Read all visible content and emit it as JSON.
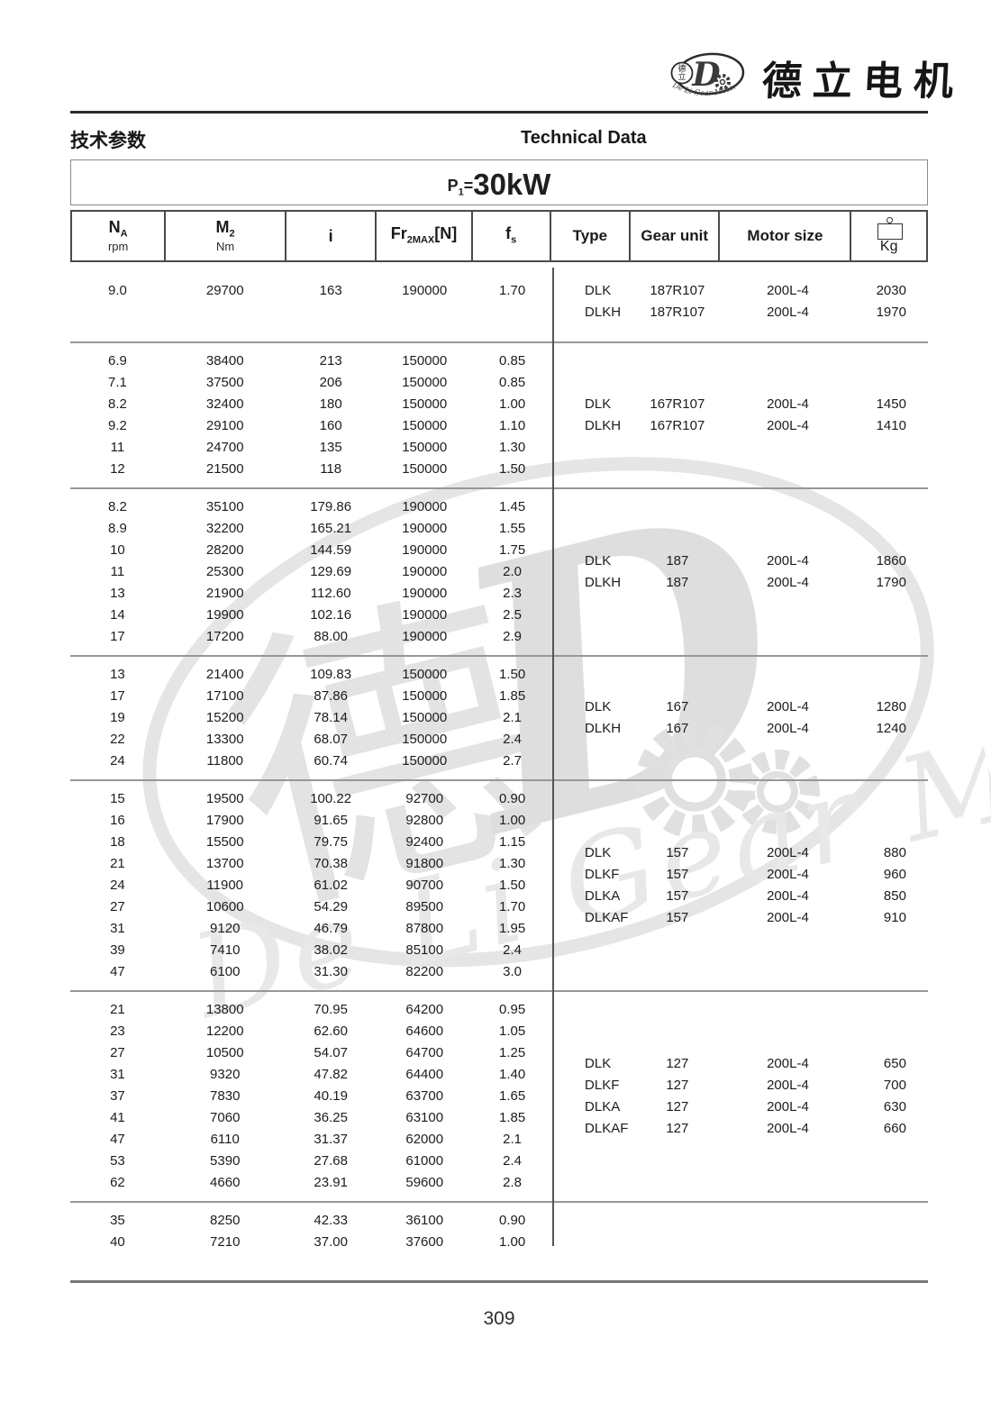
{
  "brand": {
    "name_cn": "德立电机",
    "logo_letter": "D",
    "logo_cn_top": "德",
    "logo_cn_bottom": "立",
    "ring_text": "De Li Gear Motor"
  },
  "titles": {
    "section_cn": "技术参数",
    "section_en": "Technical Data"
  },
  "power": {
    "prefix": "P",
    "sub": "1",
    "eq": "=",
    "value": "30kW"
  },
  "watermark": {
    "script_text": "De Li Gear Motor",
    "char_cn": "德",
    "letter": "D"
  },
  "page_number": "309",
  "table": {
    "col_keys": [
      "na-rpm",
      "m2-nm",
      "ratio-i",
      "fr2max",
      "fs"
    ],
    "type_keys": [
      "type",
      "gear-unit",
      "motor-size",
      "weight-kg"
    ],
    "columns": [
      {
        "main": "N",
        "sub": "A",
        "unit": "rpm"
      },
      {
        "main": "M",
        "sub": "2",
        "unit": "Nm"
      },
      {
        "main": "i"
      },
      {
        "main": "Fr",
        "sub": "2MAX",
        "after": "[N]"
      },
      {
        "main": "f",
        "sub": "s"
      },
      {
        "label": "Type"
      },
      {
        "label": "Gear unit"
      },
      {
        "label": "Motor size"
      },
      {
        "label": "Kg",
        "icon": "weight-icon"
      }
    ],
    "groups": [
      {
        "rows": [
          [
            "9.0",
            "29700",
            "163",
            "190000",
            "1.70"
          ]
        ],
        "types": [
          [
            "DLK",
            "187R107",
            "200L-4",
            "2030"
          ],
          [
            "DLKH",
            "187R107",
            "200L-4",
            "1970"
          ]
        ]
      },
      {
        "rows": [
          [
            "6.9",
            "38400",
            "213",
            "150000",
            "0.85"
          ],
          [
            "7.1",
            "37500",
            "206",
            "150000",
            "0.85"
          ],
          [
            "8.2",
            "32400",
            "180",
            "150000",
            "1.00"
          ],
          [
            "9.2",
            "29100",
            "160",
            "150000",
            "1.10"
          ],
          [
            "11",
            "24700",
            "135",
            "150000",
            "1.30"
          ],
          [
            "12",
            "21500",
            "118",
            "150000",
            "1.50"
          ]
        ],
        "types": [
          [
            "DLK",
            "167R107",
            "200L-4",
            "1450"
          ],
          [
            "DLKH",
            "167R107",
            "200L-4",
            "1410"
          ]
        ]
      },
      {
        "rows": [
          [
            "8.2",
            "35100",
            "179.86",
            "190000",
            "1.45"
          ],
          [
            "8.9",
            "32200",
            "165.21",
            "190000",
            "1.55"
          ],
          [
            "10",
            "28200",
            "144.59",
            "190000",
            "1.75"
          ],
          [
            "11",
            "25300",
            "129.69",
            "190000",
            "2.0"
          ],
          [
            "13",
            "21900",
            "112.60",
            "190000",
            "2.3"
          ],
          [
            "14",
            "19900",
            "102.16",
            "190000",
            "2.5"
          ],
          [
            "17",
            "17200",
            "88.00",
            "190000",
            "2.9"
          ]
        ],
        "types": [
          [
            "DLK",
            "187",
            "200L-4",
            "1860"
          ],
          [
            "DLKH",
            "187",
            "200L-4",
            "1790"
          ]
        ]
      },
      {
        "rows": [
          [
            "13",
            "21400",
            "109.83",
            "150000",
            "1.50"
          ],
          [
            "17",
            "17100",
            "87.86",
            "150000",
            "1.85"
          ],
          [
            "19",
            "15200",
            "78.14",
            "150000",
            "2.1"
          ],
          [
            "22",
            "13300",
            "68.07",
            "150000",
            "2.4"
          ],
          [
            "24",
            "11800",
            "60.74",
            "150000",
            "2.7"
          ]
        ],
        "types": [
          [
            "DLK",
            "167",
            "200L-4",
            "1280"
          ],
          [
            "DLKH",
            "167",
            "200L-4",
            "1240"
          ]
        ]
      },
      {
        "rows": [
          [
            "15",
            "19500",
            "100.22",
            "92700",
            "0.90"
          ],
          [
            "16",
            "17900",
            "91.65",
            "92800",
            "1.00"
          ],
          [
            "18",
            "15500",
            "79.75",
            "92400",
            "1.15"
          ],
          [
            "21",
            "13700",
            "70.38",
            "91800",
            "1.30"
          ],
          [
            "24",
            "11900",
            "61.02",
            "90700",
            "1.50"
          ],
          [
            "27",
            "10600",
            "54.29",
            "89500",
            "1.70"
          ],
          [
            "31",
            "9120",
            "46.79",
            "87800",
            "1.95"
          ],
          [
            "39",
            "7410",
            "38.02",
            "85100",
            "2.4"
          ],
          [
            "47",
            "6100",
            "31.30",
            "82200",
            "3.0"
          ]
        ],
        "types": [
          [
            "DLK",
            "157",
            "200L-4",
            "880"
          ],
          [
            "DLKF",
            "157",
            "200L-4",
            "960"
          ],
          [
            "DLKA",
            "157",
            "200L-4",
            "850"
          ],
          [
            "DLKAF",
            "157",
            "200L-4",
            "910"
          ]
        ]
      },
      {
        "rows": [
          [
            "21",
            "13800",
            "70.95",
            "64200",
            "0.95"
          ],
          [
            "23",
            "12200",
            "62.60",
            "64600",
            "1.05"
          ],
          [
            "27",
            "10500",
            "54.07",
            "64700",
            "1.25"
          ],
          [
            "31",
            "9320",
            "47.82",
            "64400",
            "1.40"
          ],
          [
            "37",
            "7830",
            "40.19",
            "63700",
            "1.65"
          ],
          [
            "41",
            "7060",
            "36.25",
            "63100",
            "1.85"
          ],
          [
            "47",
            "6110",
            "31.37",
            "62000",
            "2.1"
          ],
          [
            "53",
            "5390",
            "27.68",
            "61000",
            "2.4"
          ],
          [
            "62",
            "4660",
            "23.91",
            "59600",
            "2.8"
          ]
        ],
        "types": [
          [
            "DLK",
            "127",
            "200L-4",
            "650"
          ],
          [
            "DLKF",
            "127",
            "200L-4",
            "700"
          ],
          [
            "DLKA",
            "127",
            "200L-4",
            "630"
          ],
          [
            "DLKAF",
            "127",
            "200L-4",
            "660"
          ]
        ]
      },
      {
        "rows": [
          [
            "35",
            "8250",
            "42.33",
            "36100",
            "0.90"
          ],
          [
            "40",
            "7210",
            "37.00",
            "37600",
            "1.00"
          ]
        ],
        "types": []
      }
    ]
  }
}
